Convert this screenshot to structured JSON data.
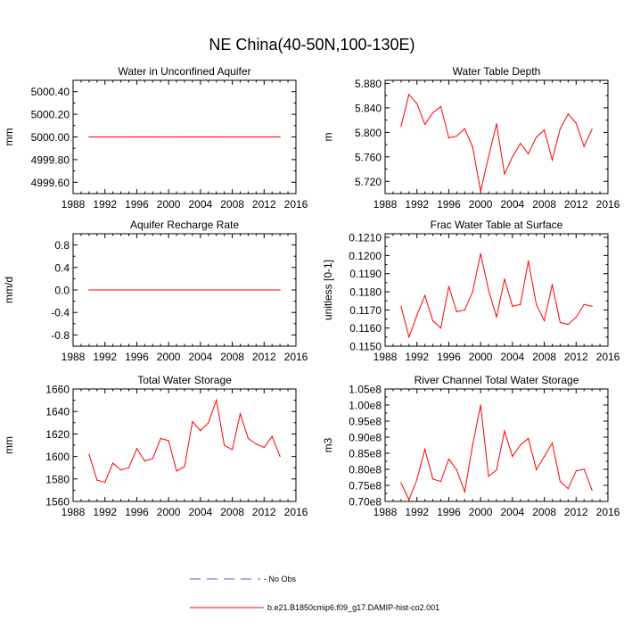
{
  "figure": {
    "title": "NE China(40-50N,100-130E)",
    "legend": [
      {
        "label": "- No Obs",
        "color": "#5a5acd",
        "style": "dashed"
      },
      {
        "label": "b.e21.B1850cmip6.f09_g17.DAMIP-hist-co2.001",
        "color": "#ff0000",
        "style": "solid"
      }
    ]
  },
  "chart_data": [
    {
      "type": "line",
      "title": "Water in Unconfined Aquifer",
      "xlabel": "",
      "ylabel": "mm",
      "xlim": [
        1988,
        2016
      ],
      "ylim": [
        4999.5,
        5000.5
      ],
      "xticks": [
        1988,
        1992,
        1996,
        2000,
        2004,
        2008,
        2012,
        2016
      ],
      "yticks": [
        4999.6,
        4999.8,
        5000.0,
        5000.2,
        5000.4
      ],
      "ytick_labels": [
        "4999.60",
        "4999.80",
        "5000.00",
        "5000.20",
        "5000.40"
      ],
      "x": [
        1990,
        1991,
        1992,
        1993,
        1994,
        1995,
        1996,
        1997,
        1998,
        1999,
        2000,
        2001,
        2002,
        2003,
        2004,
        2005,
        2006,
        2007,
        2008,
        2009,
        2010,
        2011,
        2012,
        2013,
        2014
      ],
      "series": [
        {
          "values": [
            5000,
            5000,
            5000,
            5000,
            5000,
            5000,
            5000,
            5000,
            5000,
            5000,
            5000,
            5000,
            5000,
            5000,
            5000,
            5000,
            5000,
            5000,
            5000,
            5000,
            5000,
            5000,
            5000,
            5000,
            5000
          ],
          "color": "#ff0000"
        }
      ]
    },
    {
      "type": "line",
      "title": "Water Table Depth",
      "xlabel": "",
      "ylabel": "m",
      "xlim": [
        1988,
        2016
      ],
      "ylim": [
        5.7,
        5.885
      ],
      "xticks": [
        1988,
        1992,
        1996,
        2000,
        2004,
        2008,
        2012,
        2016
      ],
      "yticks": [
        5.72,
        5.76,
        5.8,
        5.84,
        5.88
      ],
      "ytick_labels": [
        "5.720",
        "5.760",
        "5.800",
        "5.840",
        "5.880"
      ],
      "x": [
        1990,
        1991,
        1992,
        1993,
        1994,
        1995,
        1996,
        1997,
        1998,
        1999,
        2000,
        2001,
        2002,
        2003,
        2004,
        2005,
        2006,
        2007,
        2008,
        2009,
        2010,
        2011,
        2012,
        2013,
        2014
      ],
      "series": [
        {
          "values": [
            5.81,
            5.862,
            5.847,
            5.813,
            5.832,
            5.842,
            5.791,
            5.794,
            5.806,
            5.776,
            5.704,
            5.76,
            5.814,
            5.732,
            5.76,
            5.782,
            5.765,
            5.792,
            5.804,
            5.755,
            5.806,
            5.83,
            5.815,
            5.777,
            5.805
          ],
          "color": "#ff0000"
        }
      ]
    },
    {
      "type": "line",
      "title": "Aquifer Recharge Rate",
      "xlabel": "",
      "ylabel": "mm/d",
      "xlim": [
        1988,
        2016
      ],
      "ylim": [
        -1.0,
        1.0
      ],
      "xticks": [
        1988,
        1992,
        1996,
        2000,
        2004,
        2008,
        2012,
        2016
      ],
      "yticks": [
        -0.8,
        -0.4,
        0.0,
        0.4,
        0.8
      ],
      "ytick_labels": [
        "-0.8",
        "-0.4",
        "0.0",
        "0.4",
        "0.8"
      ],
      "x": [
        1990,
        1991,
        1992,
        1993,
        1994,
        1995,
        1996,
        1997,
        1998,
        1999,
        2000,
        2001,
        2002,
        2003,
        2004,
        2005,
        2006,
        2007,
        2008,
        2009,
        2010,
        2011,
        2012,
        2013,
        2014
      ],
      "series": [
        {
          "values": [
            0,
            0,
            0,
            0,
            0,
            0,
            0,
            0,
            0,
            0,
            0,
            0,
            0,
            0,
            0,
            0,
            0,
            0,
            0,
            0,
            0,
            0,
            0,
            0,
            0
          ],
          "color": "#ff0000"
        }
      ]
    },
    {
      "type": "line",
      "title": "Frac Water Table at Surface",
      "xlabel": "",
      "ylabel": "unitless [0-1]",
      "xlim": [
        1988,
        2016
      ],
      "ylim": [
        0.115,
        0.1212
      ],
      "xticks": [
        1988,
        1992,
        1996,
        2000,
        2004,
        2008,
        2012,
        2016
      ],
      "yticks": [
        0.115,
        0.116,
        0.117,
        0.118,
        0.119,
        0.12,
        0.121
      ],
      "ytick_labels": [
        "0.1150",
        "0.1160",
        "0.1170",
        "0.1180",
        "0.1190",
        "0.1200",
        "0.1210"
      ],
      "x": [
        1990,
        1991,
        1992,
        1993,
        1994,
        1995,
        1996,
        1997,
        1998,
        1999,
        2000,
        2001,
        2002,
        2003,
        2004,
        2005,
        2006,
        2007,
        2008,
        2009,
        2010,
        2011,
        2012,
        2013,
        2014
      ],
      "series": [
        {
          "values": [
            0.1172,
            0.1155,
            0.1167,
            0.1178,
            0.1164,
            0.116,
            0.1183,
            0.1169,
            0.117,
            0.118,
            0.1201,
            0.1181,
            0.1166,
            0.1187,
            0.1172,
            0.1173,
            0.1197,
            0.1173,
            0.1164,
            0.1184,
            0.1163,
            0.1162,
            0.1166,
            0.1173,
            0.1172
          ],
          "color": "#ff0000"
        }
      ]
    },
    {
      "type": "line",
      "title": "Total Water Storage",
      "xlabel": "",
      "ylabel": "mm",
      "xlim": [
        1988,
        2016
      ],
      "ylim": [
        1560,
        1660
      ],
      "xticks": [
        1988,
        1992,
        1996,
        2000,
        2004,
        2008,
        2012,
        2016
      ],
      "yticks": [
        1560,
        1580,
        1600,
        1620,
        1640,
        1660
      ],
      "ytick_labels": [
        "1560",
        "1580",
        "1600",
        "1620",
        "1640",
        "1660"
      ],
      "x": [
        1990,
        1991,
        1992,
        1993,
        1994,
        1995,
        1996,
        1997,
        1998,
        1999,
        2000,
        2001,
        2002,
        2003,
        2004,
        2005,
        2006,
        2007,
        2008,
        2009,
        2010,
        2011,
        2012,
        2013,
        2014
      ],
      "series": [
        {
          "values": [
            1602,
            1579,
            1577,
            1594,
            1588,
            1590,
            1607,
            1596,
            1598,
            1616,
            1614,
            1587,
            1591,
            1631,
            1623,
            1630,
            1650,
            1610,
            1606,
            1638,
            1616,
            1611,
            1608,
            1618,
            1600
          ],
          "color": "#ff0000"
        }
      ]
    },
    {
      "type": "line",
      "title": "River Channel Total Water Storage",
      "xlabel": "",
      "ylabel": "m3",
      "xlim": [
        1988,
        2016
      ],
      "ylim": [
        70000000,
        105000000
      ],
      "xticks": [
        1988,
        1992,
        1996,
        2000,
        2004,
        2008,
        2012,
        2016
      ],
      "yticks": [
        70000000,
        75000000,
        80000000,
        85000000,
        90000000,
        95000000,
        100000000,
        105000000
      ],
      "ytick_labels": [
        "0.70e8",
        "0.75e8",
        "0.80e8",
        "0.85e8",
        "0.90e8",
        "0.95e8",
        "1.00e8",
        "1.05e8"
      ],
      "x": [
        1990,
        1991,
        1992,
        1993,
        1994,
        1995,
        1996,
        1997,
        1998,
        1999,
        2000,
        2001,
        2002,
        2003,
        2004,
        2005,
        2006,
        2007,
        2008,
        2009,
        2010,
        2011,
        2012,
        2013,
        2014
      ],
      "series": [
        {
          "values": [
            75800000,
            70500000,
            76800000,
            86200000,
            77000000,
            76200000,
            83200000,
            79800000,
            73000000,
            87600000,
            100000000,
            77800000,
            79800000,
            91900000,
            84000000,
            87600000,
            89600000,
            79900000,
            84000000,
            88200000,
            76200000,
            74000000,
            79500000,
            80000000,
            73500000
          ],
          "color": "#ff0000"
        }
      ]
    }
  ]
}
